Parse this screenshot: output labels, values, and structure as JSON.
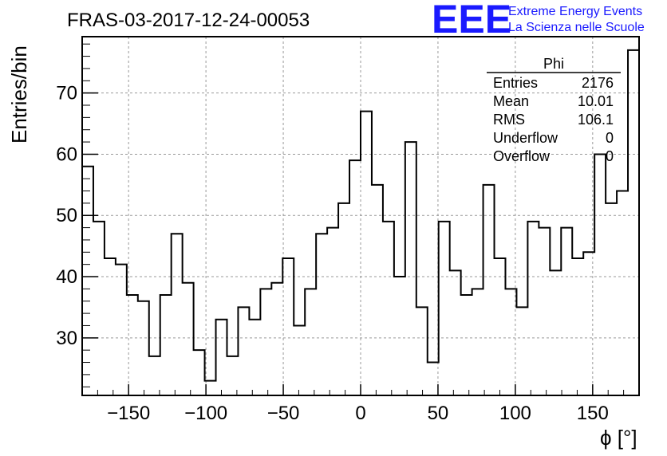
{
  "header": {
    "title": "FRAS-03-2017-12-24-00053",
    "logo_text": "EEE",
    "logo_line1": "Extreme Energy Events",
    "logo_line2": "La Scienza nelle Scuole",
    "logo_color": "#1a1aff"
  },
  "stats_box": {
    "title": "Phi",
    "rows": [
      {
        "label": "Entries",
        "value": "2176"
      },
      {
        "label": "Mean",
        "value": "10.01"
      },
      {
        "label": "RMS",
        "value": "106.1"
      },
      {
        "label": "Underflow",
        "value": "0"
      },
      {
        "label": "Overflow",
        "value": "0"
      }
    ]
  },
  "chart_data": {
    "type": "histogram",
    "title": "FRAS-03-2017-12-24-00053",
    "xlabel": "ϕ [°]",
    "ylabel": "Entries/bin",
    "xlim": [
      -180,
      180
    ],
    "ylim": [
      20.6,
      79.2
    ],
    "bin_width": 7.2,
    "grid": true,
    "line_color": "#000000",
    "x_ticks": [
      -150,
      -100,
      -50,
      0,
      50,
      100,
      150
    ],
    "x_tick_labels": [
      "−150",
      "−100",
      "−50",
      "0",
      "50",
      "100",
      "150"
    ],
    "y_ticks": [
      30,
      40,
      50,
      60,
      70
    ],
    "y_tick_labels": [
      "30",
      "40",
      "50",
      "60",
      "70"
    ],
    "values": [
      58,
      49,
      43,
      42,
      37,
      36,
      27,
      37,
      47,
      39,
      28,
      23,
      33,
      27,
      35,
      33,
      38,
      39,
      43,
      32,
      38,
      47,
      48,
      52,
      59,
      67,
      55,
      49,
      40,
      62,
      35,
      26,
      49,
      41,
      37,
      38,
      55,
      43,
      38,
      35,
      49,
      48,
      41,
      48,
      43,
      44,
      60,
      52,
      54,
      77
    ]
  }
}
